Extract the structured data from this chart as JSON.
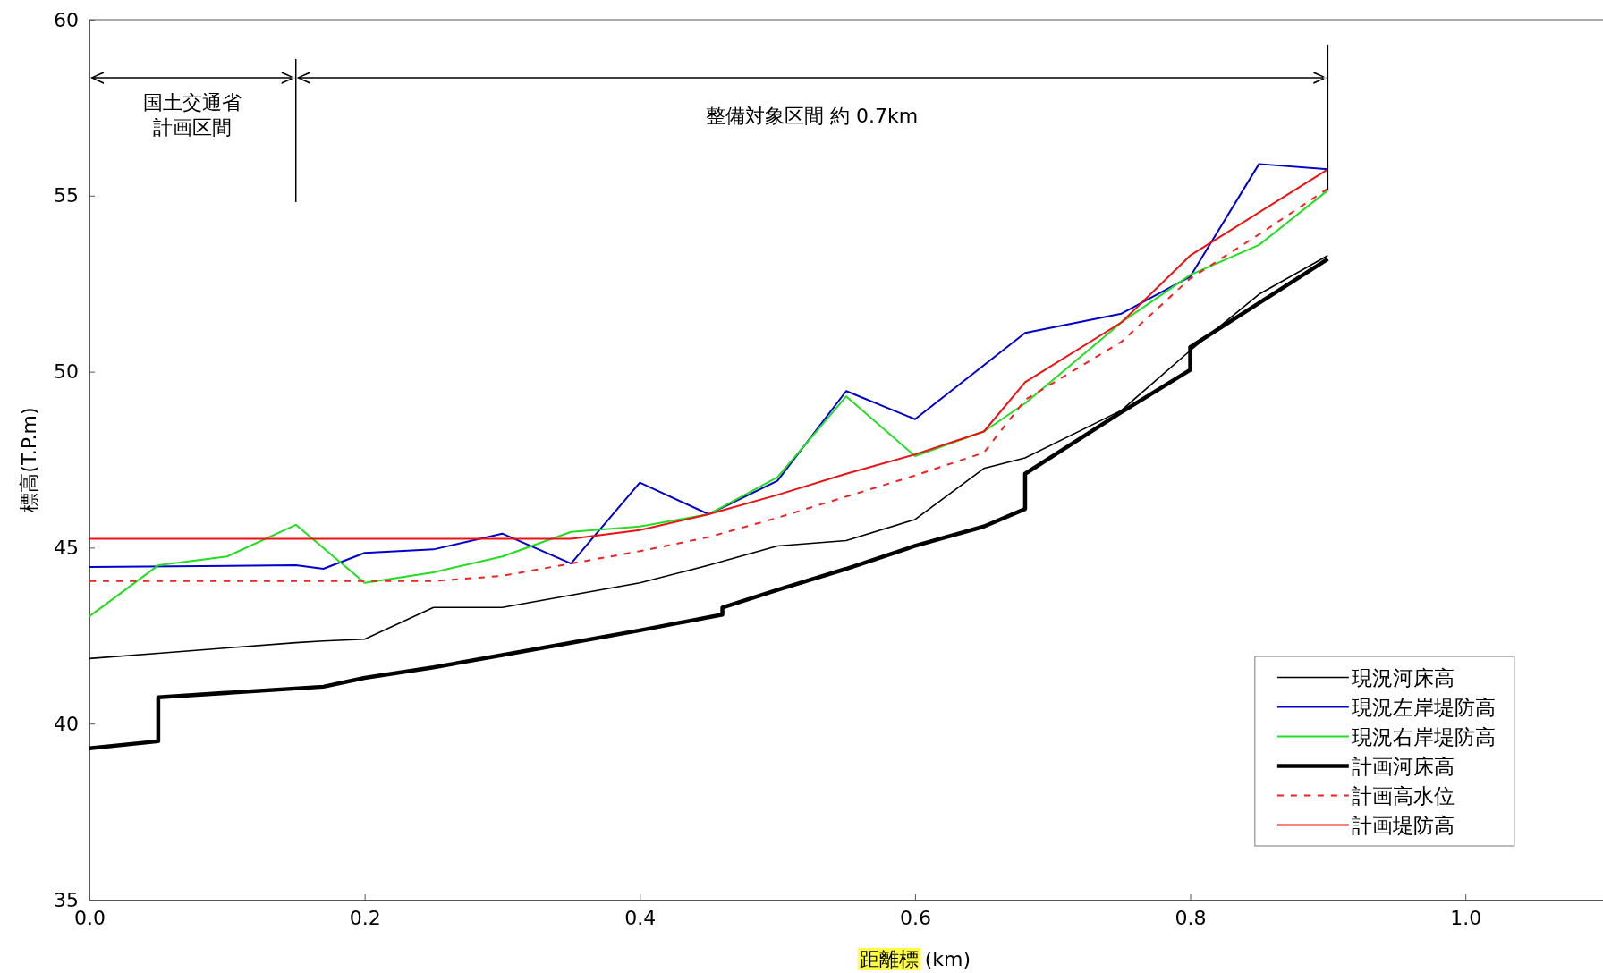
{
  "chart_data": {
    "type": "line",
    "xlabel": "距離標 (km)",
    "ylabel": "標高(T.P.m)",
    "xlim": [
      0,
      1.1
    ],
    "ylim": [
      35,
      60
    ],
    "xticks": [
      {
        "value": 0,
        "label": "0.0"
      },
      {
        "value": 0.2,
        "label": "0.2"
      },
      {
        "value": 0.4,
        "label": "0.4"
      },
      {
        "value": 0.6,
        "label": "0.6"
      },
      {
        "value": 0.8,
        "label": "0.8"
      },
      {
        "value": 1,
        "label": "1.0"
      }
    ],
    "yticks": [
      35,
      40,
      45,
      50,
      55,
      60
    ],
    "grid": false,
    "legend": "bottom right",
    "marker": "none",
    "annotations": [
      "国土交通省計画区間",
      "整備対象区間 約 0.7km"
    ],
    "series": [
      {
        "name": "現況河床高",
        "color": "#000000",
        "line_style": "solid",
        "x": [
          0,
          0.05,
          0.1,
          0.15,
          0.17,
          0.2,
          0.25,
          0.3,
          0.35,
          0.4,
          0.45,
          0.5,
          0.55,
          0.6,
          0.65,
          0.68,
          0.75,
          0.8,
          0.85,
          0.9
        ],
        "values": [
          41.85,
          42.0,
          42.15,
          42.3,
          42.35,
          42.4,
          43.3,
          43.3,
          43.65,
          44.0,
          44.5,
          45.05,
          45.2,
          45.8,
          47.25,
          47.55,
          48.9,
          50.6,
          52.2,
          53.3
        ]
      },
      {
        "name": "現況左岸堤防高",
        "color": "#0000cc",
        "line_style": "solid",
        "x": [
          0,
          0.15,
          0.17,
          0.2,
          0.25,
          0.3,
          0.35,
          0.4,
          0.45,
          0.5,
          0.55,
          0.6,
          0.68,
          0.75,
          0.8,
          0.85,
          0.9
        ],
        "values": [
          44.45,
          44.5,
          44.4,
          44.85,
          44.95,
          45.4,
          44.55,
          46.85,
          45.95,
          46.9,
          49.45,
          48.65,
          51.1,
          51.65,
          52.7,
          55.9,
          55.75
        ]
      },
      {
        "name": "現況右岸堤防高",
        "color": "#22dd22",
        "line_style": "solid",
        "x": [
          0,
          0.05,
          0.1,
          0.15,
          0.2,
          0.25,
          0.3,
          0.35,
          0.4,
          0.45,
          0.5,
          0.55,
          0.6,
          0.65,
          0.68,
          0.75,
          0.8,
          0.85,
          0.9
        ],
        "values": [
          43.05,
          44.5,
          44.75,
          45.65,
          44.0,
          44.3,
          44.75,
          45.45,
          45.6,
          45.95,
          47.0,
          49.3,
          47.6,
          48.3,
          49.1,
          51.4,
          52.75,
          53.6,
          55.15
        ]
      },
      {
        "name": "計画河床高",
        "color": "#000000",
        "line_style": "solid",
        "x": [
          0,
          0.05,
          0.05,
          0.17,
          0.2,
          0.25,
          0.3,
          0.35,
          0.4,
          0.46,
          0.46,
          0.5,
          0.55,
          0.6,
          0.65,
          0.68,
          0.68,
          0.75,
          0.8,
          0.8,
          0.9
        ],
        "values": [
          39.3,
          39.5,
          40.75,
          41.05,
          41.3,
          41.6,
          41.95,
          42.3,
          42.65,
          43.1,
          43.3,
          43.8,
          44.4,
          45.05,
          45.6,
          46.1,
          47.1,
          48.85,
          50.05,
          50.7,
          53.2
        ]
      },
      {
        "name": "計画高水位",
        "color": "#ee2222",
        "line_style": "dashed",
        "x": [
          0,
          0.25,
          0.3,
          0.35,
          0.4,
          0.45,
          0.5,
          0.55,
          0.6,
          0.65,
          0.68,
          0.75,
          0.8,
          0.85,
          0.9
        ],
        "values": [
          44.05,
          44.05,
          44.2,
          44.55,
          44.9,
          45.3,
          45.85,
          46.45,
          47.05,
          47.7,
          49.2,
          50.85,
          52.65,
          53.9,
          55.2
        ]
      },
      {
        "name": "計画堤防高",
        "color": "#ee1111",
        "line_style": "solid",
        "x": [
          0,
          0.35,
          0.4,
          0.45,
          0.5,
          0.55,
          0.6,
          0.65,
          0.68,
          0.75,
          0.8,
          0.9
        ],
        "values": [
          45.25,
          45.25,
          45.5,
          45.95,
          46.5,
          47.1,
          47.65,
          48.3,
          49.7,
          51.4,
          53.3,
          55.75
        ]
      }
    ]
  }
}
